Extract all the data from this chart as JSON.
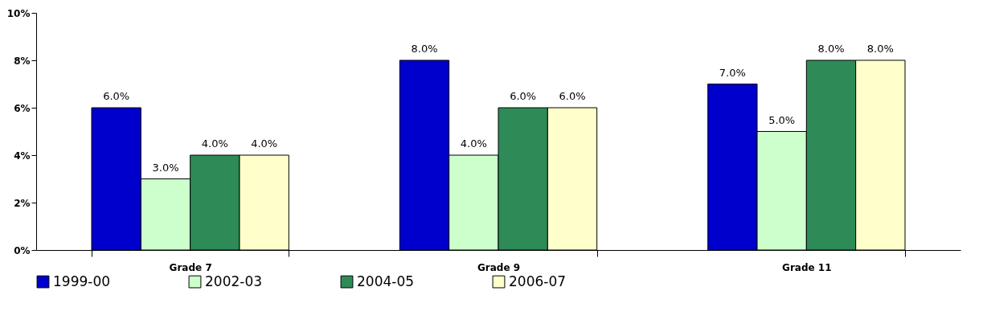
{
  "chart_data": {
    "type": "bar",
    "categories": [
      "Grade 7",
      "Grade 9",
      "Grade 11"
    ],
    "series": [
      {
        "name": "1999-00",
        "color": "#0000cc",
        "values": [
          6,
          8,
          7
        ],
        "value_labels": [
          "6.0%",
          "8.0%",
          "7.0%"
        ]
      },
      {
        "name": "2002-03",
        "color": "#ccffcc",
        "values": [
          3,
          4,
          5
        ],
        "value_labels": [
          "3.0%",
          "4.0%",
          "5.0%"
        ]
      },
      {
        "name": "2004-05",
        "color": "#2e8b57",
        "values": [
          4,
          6,
          8
        ],
        "value_labels": [
          "4.0%",
          "6.0%",
          "8.0%"
        ]
      },
      {
        "name": "2006-07",
        "color": "#ffffcc",
        "values": [
          4,
          6,
          8
        ],
        "value_labels": [
          "4.0%",
          "6.0%",
          "8.0%"
        ]
      }
    ],
    "ylim": [
      0,
      10
    ],
    "yticks": [
      {
        "value": 0,
        "label": "0%"
      },
      {
        "value": 2,
        "label": "2%"
      },
      {
        "value": 4,
        "label": "4%"
      },
      {
        "value": 6,
        "label": "6%"
      },
      {
        "value": 8,
        "label": "8%"
      },
      {
        "value": 10,
        "label": "10%"
      }
    ],
    "grid": false,
    "legend": "bottom"
  }
}
